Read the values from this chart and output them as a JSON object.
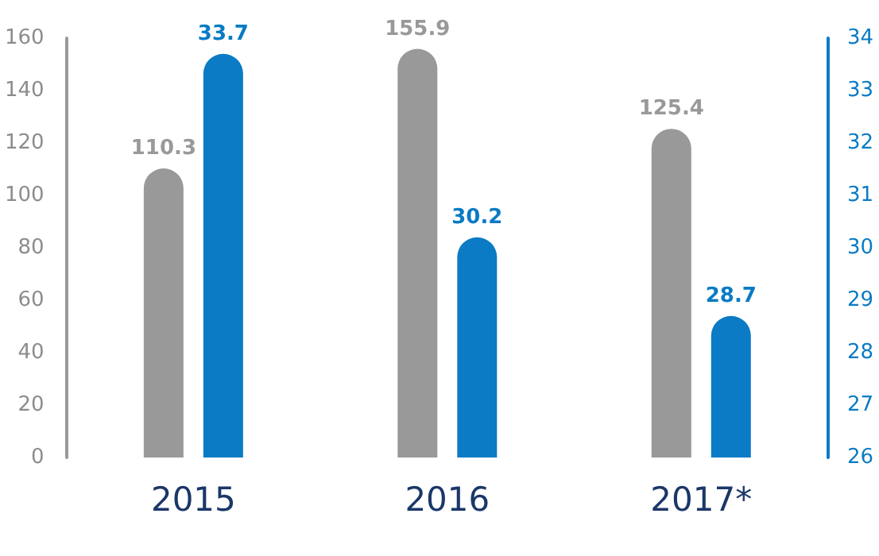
{
  "chart_data": {
    "type": "bar",
    "categories": [
      "2015",
      "2016",
      "2017*"
    ],
    "series": [
      {
        "color": "#999999",
        "values": [
          110.3,
          155.9,
          125.4
        ]
      },
      {
        "color": "#0a7bc4",
        "values": [
          33.7,
          30.2,
          28.7
        ],
        "axis": "y2"
      }
    ],
    "ylim": [
      0,
      160
    ],
    "yticks": [
      0,
      20,
      40,
      60,
      80,
      100,
      120,
      140,
      160
    ],
    "y2lim": [
      26,
      34
    ],
    "y2ticks": [
      26,
      27,
      28,
      29,
      30,
      31,
      32,
      33,
      34
    ],
    "data_labels": true,
    "grid": false
  }
}
